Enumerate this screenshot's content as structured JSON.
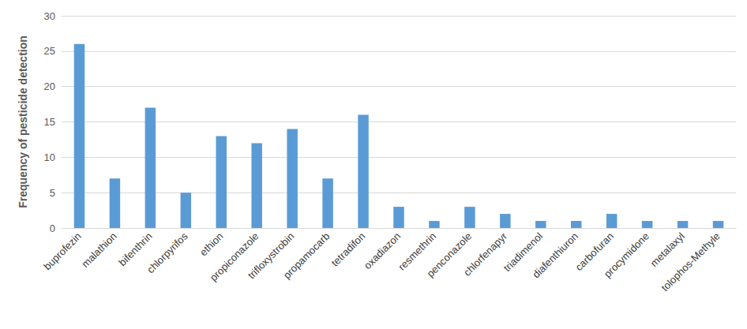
{
  "chart_data": {
    "type": "bar",
    "y_label": "Frequency of pesticide detection",
    "categories": [
      "buprofezin",
      "malathion",
      "bifenthrin",
      "chlorpyrifos",
      "ethion",
      "propiconazole",
      "trifloxystrobin",
      "propamocarb",
      "tetradifon",
      "oxadiazon",
      "resmethrin",
      "penconazole",
      "chlorfenapyr",
      "triadimenol",
      "diafenthiuron",
      "carbofuran",
      "procymidone",
      "metalaxyl",
      "tolophos-Methyle"
    ],
    "values": [
      26,
      7,
      17,
      5,
      13,
      12,
      14,
      7,
      16,
      3,
      1,
      3,
      2,
      1,
      1,
      2,
      1,
      1,
      1
    ],
    "color": "#5b9bd5",
    "ylim": [
      0,
      30
    ],
    "yticks": [
      0,
      5,
      10,
      15,
      20,
      25,
      30
    ],
    "grid": true
  }
}
